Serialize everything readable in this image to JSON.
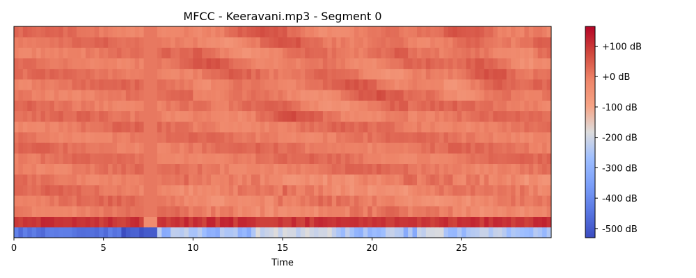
{
  "chart_data": {
    "type": "heatmap",
    "title": "MFCC - Keeravani.mp3 - Segment 0",
    "xlabel": "Time",
    "ylabel": "",
    "xlim": [
      0,
      30
    ],
    "x_ticks": [
      0,
      5,
      10,
      15,
      20,
      25
    ],
    "x_tick_labels": [
      "0",
      "5",
      "10",
      "15",
      "20",
      "25"
    ],
    "n_coefficients": 20,
    "n_frames": 120,
    "colormap": "coolwarm",
    "colorbar": {
      "range": [
        -530,
        165
      ],
      "ticks": [
        100,
        0,
        -100,
        -200,
        -300,
        -400,
        -500
      ],
      "tick_labels": [
        "+100 dB",
        "+0 dB",
        "-100 dB",
        "-200 dB",
        "-300 dB",
        "-400 dB",
        "-500 dB"
      ],
      "placement": "right"
    },
    "coefficient_rows": [
      {
        "coefficient": 0,
        "description": "lowest row, strongly negative",
        "values_range": [
          -530,
          -180
        ]
      },
      {
        "coefficient": 1,
        "description": "second row, strongly positive",
        "values_range": [
          60,
          140
        ]
      },
      {
        "coefficient": "2-19",
        "description": "remaining coefficients near 0 dB",
        "values_range": [
          -60,
          110
        ]
      }
    ],
    "silent_region": {
      "start_time": 7.2,
      "end_time": 8.1,
      "description": "uniform region near 0 dB"
    }
  }
}
